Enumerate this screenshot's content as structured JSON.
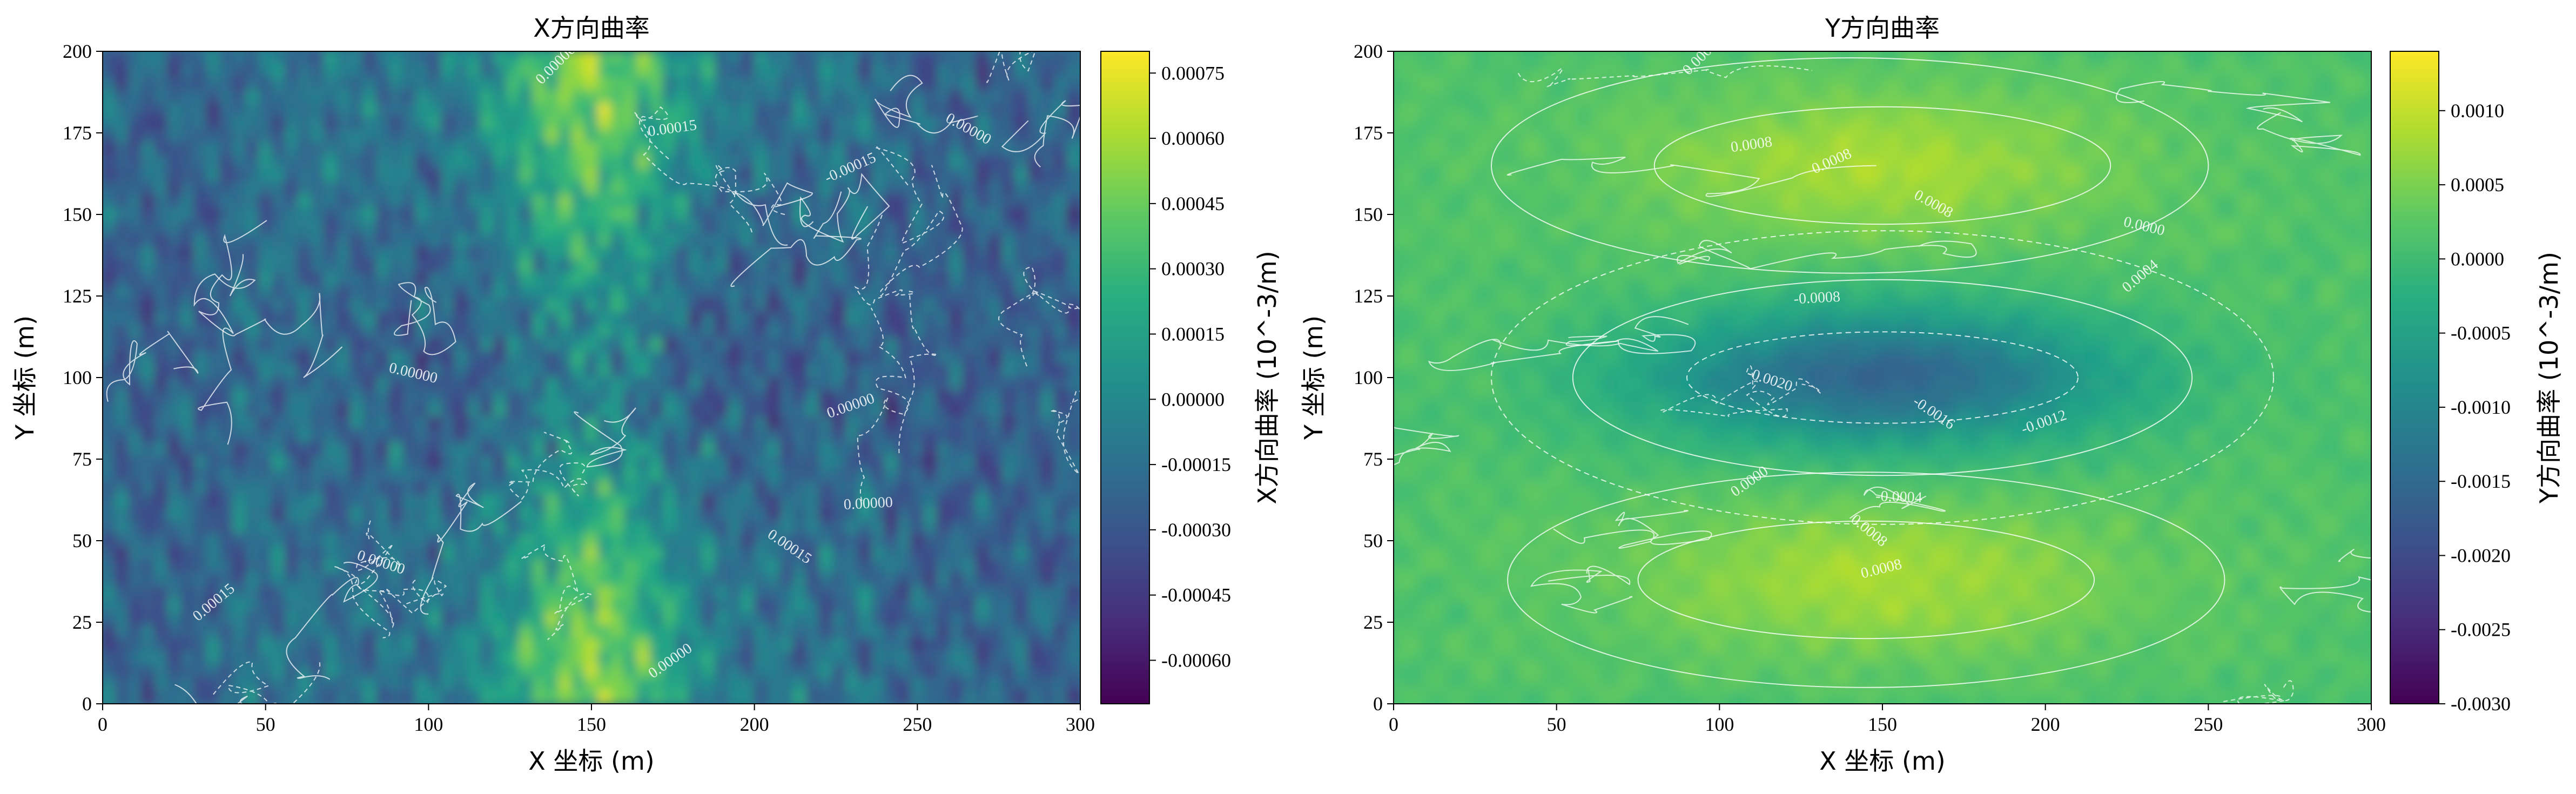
{
  "chart_data": [
    {
      "type": "heatmap",
      "title": "X方向曲率",
      "xlabel": "X 坐标 (m)",
      "ylabel": "Y 坐标 (m)",
      "xlim": [
        0,
        300
      ],
      "ylim": [
        0,
        200
      ],
      "xticks": [
        "0",
        "50",
        "100",
        "150",
        "200",
        "250",
        "300"
      ],
      "yticks": [
        "0",
        "25",
        "50",
        "75",
        "100",
        "125",
        "150",
        "175",
        "200"
      ],
      "colormap": "viridis",
      "colorbar": {
        "label": "X方向曲率 (10^-3/m)",
        "range": [
          -0.0007,
          0.0008
        ],
        "ticks": [
          "-0.00060",
          "-0.00045",
          "-0.00030",
          "-0.00015",
          "0.00000",
          "0.00015",
          "0.00030",
          "0.00045",
          "0.00060",
          "0.00075"
        ]
      },
      "contour_labels": [
        "0.00000",
        "0.00015",
        "0.00000",
        "-0.00015",
        "0.00000",
        "0.00015",
        "0.00000",
        "0.00015",
        "0.00000",
        "0.00000",
        "0.00000"
      ],
      "contour_label_pos": [
        [
          140,
          195
        ],
        [
          175,
          175
        ],
        [
          265,
          175
        ],
        [
          230,
          163
        ],
        [
          95,
          100
        ],
        [
          35,
          30
        ],
        [
          235,
          60
        ],
        [
          210,
          47
        ],
        [
          230,
          90
        ],
        [
          85,
          42
        ],
        [
          175,
          12
        ]
      ]
    },
    {
      "type": "heatmap",
      "title": "Y方向曲率",
      "xlabel": "X 坐标 (m)",
      "ylabel": "Y 坐标 (m)",
      "xlim": [
        0,
        300
      ],
      "ylim": [
        0,
        200
      ],
      "xticks": [
        "0",
        "50",
        "100",
        "150",
        "200",
        "250",
        "300"
      ],
      "yticks": [
        "0",
        "25",
        "50",
        "75",
        "100",
        "125",
        "150",
        "175",
        "200"
      ],
      "colormap": "viridis",
      "colorbar": {
        "label": "Y方向曲率 (10^-3/m)",
        "range": [
          -0.003,
          0.0014
        ],
        "ticks": [
          "-0.0030",
          "-0.0025",
          "-0.0020",
          "-0.0015",
          "-0.0010",
          "-0.0005",
          "0.0000",
          "0.0005",
          "0.0010"
        ]
      },
      "contour_labels": [
        "0.0004",
        "0.0008",
        "0.0008",
        "0.0008",
        "0.0000",
        "0.0004",
        "-0.0008",
        "-0.0016",
        "-0.0012",
        "-0.0020",
        "0.0000",
        "-0.0004",
        "0.0008",
        "0.0008"
      ],
      "contour_label_pos": [
        [
          95,
          197
        ],
        [
          110,
          170
        ],
        [
          165,
          152
        ],
        [
          135,
          165
        ],
        [
          230,
          145
        ],
        [
          230,
          130
        ],
        [
          130,
          123
        ],
        [
          165,
          88
        ],
        [
          200,
          85
        ],
        [
          115,
          98
        ],
        [
          110,
          67
        ],
        [
          155,
          62
        ],
        [
          145,
          52
        ],
        [
          150,
          40
        ]
      ]
    }
  ]
}
